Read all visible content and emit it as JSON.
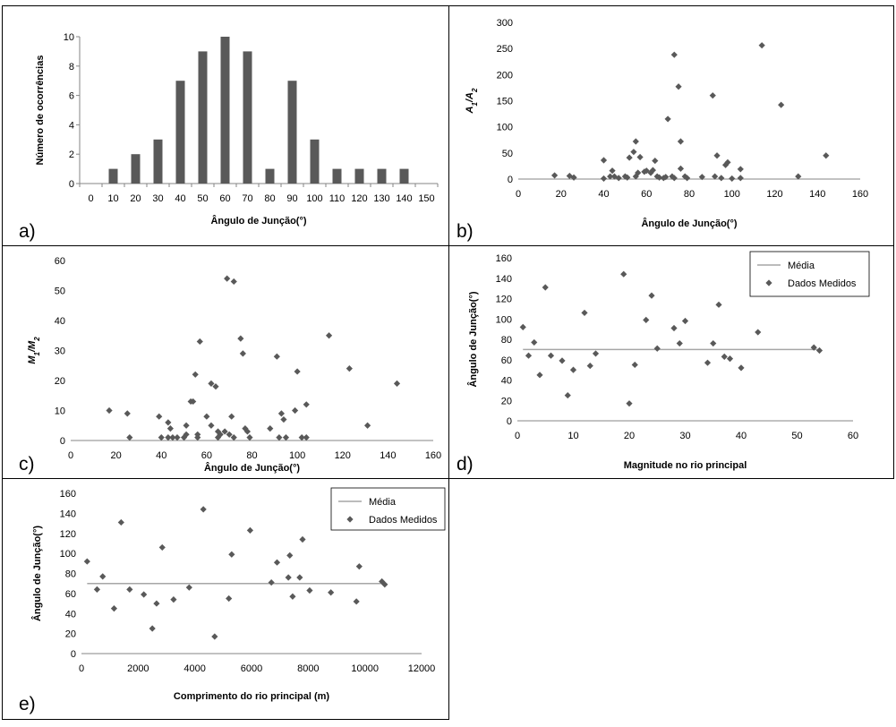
{
  "chart_data": [
    {
      "panel_label": "a)",
      "type": "bar",
      "categories": [
        "0",
        "10",
        "20",
        "30",
        "40",
        "50",
        "60",
        "70",
        "80",
        "90",
        "100",
        "110",
        "120",
        "130",
        "140",
        "150"
      ],
      "values": [
        0,
        1,
        2,
        3,
        7,
        9,
        10,
        9,
        1,
        7,
        3,
        1,
        1,
        1,
        1,
        0
      ],
      "xlabel": "Ângulo de Junção(°)",
      "ylabel": "Número de ocorrências",
      "ylim": [
        0,
        10
      ],
      "yticks": [
        "0",
        "2",
        "4",
        "6",
        "8",
        "10"
      ],
      "bar_color": "#595959"
    },
    {
      "panel_label": "b)",
      "type": "scatter",
      "xlabel": "Ângulo de Junção(°)",
      "ylabel": "A1/A2",
      "ylabel_main": "A",
      "ylabel_sub1": "1",
      "ylabel_sep": "/A",
      "ylabel_sub2": "2",
      "xlim": [
        0,
        160
      ],
      "ylim": [
        0,
        300
      ],
      "xticks": [
        "0",
        "20",
        "40",
        "60",
        "80",
        "100",
        "120",
        "140",
        "160"
      ],
      "yticks": [
        "0",
        "50",
        "100",
        "150",
        "200",
        "250",
        "300"
      ],
      "marker_color": "#595959",
      "points": [
        [
          17,
          7
        ],
        [
          24,
          6
        ],
        [
          26,
          3
        ],
        [
          40,
          36
        ],
        [
          40,
          1
        ],
        [
          43,
          5
        ],
        [
          44,
          16
        ],
        [
          45,
          5
        ],
        [
          47,
          2
        ],
        [
          50,
          5
        ],
        [
          51,
          3
        ],
        [
          52,
          41
        ],
        [
          54,
          52
        ],
        [
          55,
          72
        ],
        [
          55,
          5
        ],
        [
          56,
          12
        ],
        [
          57,
          42
        ],
        [
          59,
          14
        ],
        [
          60,
          16
        ],
        [
          62,
          12
        ],
        [
          63,
          17
        ],
        [
          64,
          35
        ],
        [
          65,
          5
        ],
        [
          66,
          3
        ],
        [
          68,
          2
        ],
        [
          69,
          4
        ],
        [
          70,
          115
        ],
        [
          72,
          5
        ],
        [
          73,
          238
        ],
        [
          73,
          2
        ],
        [
          75,
          177
        ],
        [
          76,
          20
        ],
        [
          76,
          72
        ],
        [
          78,
          5
        ],
        [
          79,
          2
        ],
        [
          86,
          4
        ],
        [
          91,
          160
        ],
        [
          92,
          5
        ],
        [
          93,
          45
        ],
        [
          95,
          2
        ],
        [
          97,
          27
        ],
        [
          98,
          32
        ],
        [
          100,
          1
        ],
        [
          104,
          19
        ],
        [
          104,
          2
        ],
        [
          114,
          256
        ],
        [
          123,
          142
        ],
        [
          131,
          5
        ],
        [
          144,
          45
        ]
      ]
    },
    {
      "panel_label": "c)",
      "type": "scatter",
      "xlabel": "Ângulo de Junção(°)",
      "ylabel": "M1/M2",
      "ylabel_main": "M",
      "ylabel_sub1": "1",
      "ylabel_sep": "/M",
      "ylabel_sub2": "2",
      "xlim": [
        0,
        160
      ],
      "ylim": [
        0,
        60
      ],
      "xticks": [
        "0",
        "20",
        "40",
        "60",
        "80",
        "100",
        "120",
        "140",
        "160"
      ],
      "yticks": [
        "0",
        "10",
        "20",
        "30",
        "40",
        "50",
        "60"
      ],
      "marker_color": "#595959",
      "points": [
        [
          17,
          10
        ],
        [
          25,
          9
        ],
        [
          26,
          1
        ],
        [
          39,
          8
        ],
        [
          40,
          1
        ],
        [
          43,
          6
        ],
        [
          43,
          1
        ],
        [
          44,
          4
        ],
        [
          45,
          1
        ],
        [
          47,
          1
        ],
        [
          50,
          1
        ],
        [
          51,
          5
        ],
        [
          51,
          2
        ],
        [
          53,
          13
        ],
        [
          54,
          13
        ],
        [
          55,
          22
        ],
        [
          56,
          2
        ],
        [
          56,
          1
        ],
        [
          57,
          33
        ],
        [
          60,
          8
        ],
        [
          62,
          5
        ],
        [
          62,
          19
        ],
        [
          64,
          18
        ],
        [
          65,
          1
        ],
        [
          65,
          3
        ],
        [
          66,
          2
        ],
        [
          66,
          2
        ],
        [
          68,
          3
        ],
        [
          69,
          54
        ],
        [
          70,
          2
        ],
        [
          71,
          8
        ],
        [
          72,
          53
        ],
        [
          72,
          1
        ],
        [
          75,
          34
        ],
        [
          76,
          29
        ],
        [
          77,
          4
        ],
        [
          78,
          3
        ],
        [
          79,
          1
        ],
        [
          88,
          4
        ],
        [
          91,
          28
        ],
        [
          92,
          1
        ],
        [
          93,
          9
        ],
        [
          94,
          7
        ],
        [
          95,
          1
        ],
        [
          99,
          10
        ],
        [
          100,
          23
        ],
        [
          102,
          1
        ],
        [
          104,
          12
        ],
        [
          104,
          1
        ],
        [
          114,
          35
        ],
        [
          123,
          24
        ],
        [
          131,
          5
        ],
        [
          144,
          19
        ]
      ]
    },
    {
      "panel_label": "d)",
      "type": "scatter",
      "xlabel": "Magnitude no rio principal",
      "ylabel": "Ângulo de Junção(°)",
      "xlim": [
        0,
        60
      ],
      "ylim": [
        0,
        160
      ],
      "xticks": [
        "0",
        "10",
        "20",
        "30",
        "40",
        "50",
        "60"
      ],
      "yticks": [
        "0",
        "20",
        "40",
        "60",
        "80",
        "100",
        "120",
        "140",
        "160"
      ],
      "marker_color": "#595959",
      "line_color": "#a6a6a6",
      "mean": 70,
      "legend": [
        "Média",
        "Dados Medidos"
      ],
      "points": [
        [
          1,
          92
        ],
        [
          2,
          64
        ],
        [
          3,
          77
        ],
        [
          4,
          45
        ],
        [
          5,
          131
        ],
        [
          6,
          64
        ],
        [
          8,
          59
        ],
        [
          9,
          25
        ],
        [
          10,
          50
        ],
        [
          12,
          106
        ],
        [
          13,
          54
        ],
        [
          14,
          66
        ],
        [
          19,
          144
        ],
        [
          20,
          17
        ],
        [
          21,
          55
        ],
        [
          23,
          99
        ],
        [
          24,
          123
        ],
        [
          25,
          71
        ],
        [
          28,
          91
        ],
        [
          29,
          76
        ],
        [
          30,
          98
        ],
        [
          34,
          57
        ],
        [
          35,
          76
        ],
        [
          36,
          114
        ],
        [
          37,
          63
        ],
        [
          38,
          61
        ],
        [
          40,
          52
        ],
        [
          43,
          87
        ],
        [
          53,
          72
        ],
        [
          54,
          69
        ]
      ]
    },
    {
      "panel_label": "e)",
      "type": "scatter",
      "xlabel": "Comprimento do rio principal (m)",
      "ylabel": "Ângulo de Junção(°)",
      "xlim": [
        0,
        12000
      ],
      "ylim": [
        0,
        160
      ],
      "xticks": [
        "0",
        "2000",
        "4000",
        "6000",
        "8000",
        "10000",
        "12000"
      ],
      "yticks": [
        "0",
        "20",
        "40",
        "60",
        "80",
        "100",
        "120",
        "140",
        "160"
      ],
      "marker_color": "#595959",
      "line_color": "#a6a6a6",
      "mean": 70,
      "legend": [
        "Média",
        "Dados Medidos"
      ],
      "points": [
        [
          200,
          92
        ],
        [
          550,
          64
        ],
        [
          750,
          77
        ],
        [
          1150,
          45
        ],
        [
          1400,
          131
        ],
        [
          1700,
          64
        ],
        [
          2200,
          59
        ],
        [
          2500,
          25
        ],
        [
          2650,
          50
        ],
        [
          2850,
          106
        ],
        [
          3250,
          54
        ],
        [
          3800,
          66
        ],
        [
          4300,
          144
        ],
        [
          4700,
          17
        ],
        [
          5200,
          55
        ],
        [
          5300,
          99
        ],
        [
          5950,
          123
        ],
        [
          6700,
          71
        ],
        [
          6900,
          91
        ],
        [
          7300,
          76
        ],
        [
          7350,
          98
        ],
        [
          7450,
          57
        ],
        [
          7700,
          76
        ],
        [
          7800,
          114
        ],
        [
          8050,
          63
        ],
        [
          8800,
          61
        ],
        [
          9700,
          52
        ],
        [
          9800,
          87
        ],
        [
          10600,
          72
        ],
        [
          10700,
          69
        ]
      ]
    }
  ]
}
